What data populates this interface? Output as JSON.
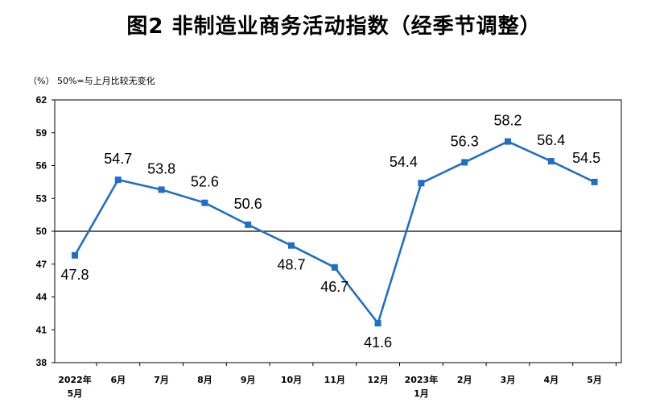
{
  "chart_data": {
    "type": "line",
    "title": "图2  非制造业商务活动指数（经季节调整）",
    "note": "（%）  50%=与上月比较无变化",
    "categories": [
      [
        "2022年",
        "5月"
      ],
      [
        "6月"
      ],
      [
        "7月"
      ],
      [
        "8月"
      ],
      [
        "9月"
      ],
      [
        "10月"
      ],
      [
        "11月"
      ],
      [
        "12月"
      ],
      [
        "2023年",
        "1月"
      ],
      [
        "2月"
      ],
      [
        "3月"
      ],
      [
        "4月"
      ],
      [
        "5月"
      ]
    ],
    "values": [
      47.8,
      54.7,
      53.8,
      52.6,
      50.6,
      48.7,
      46.7,
      41.6,
      54.4,
      56.3,
      58.2,
      56.4,
      54.5
    ],
    "value_labels": [
      "47.8",
      "54.7",
      "53.8",
      "52.6",
      "50.6",
      "48.7",
      "46.7",
      "41.6",
      "54.4",
      "56.3",
      "58.2",
      "56.4",
      "54.5"
    ],
    "ylim": [
      38,
      62
    ],
    "yticks": [
      "38",
      "41",
      "44",
      "47",
      "50",
      "53",
      "56",
      "59",
      "62"
    ],
    "reference_line": 50,
    "grid": false,
    "line_color": "#1f6fc5"
  }
}
